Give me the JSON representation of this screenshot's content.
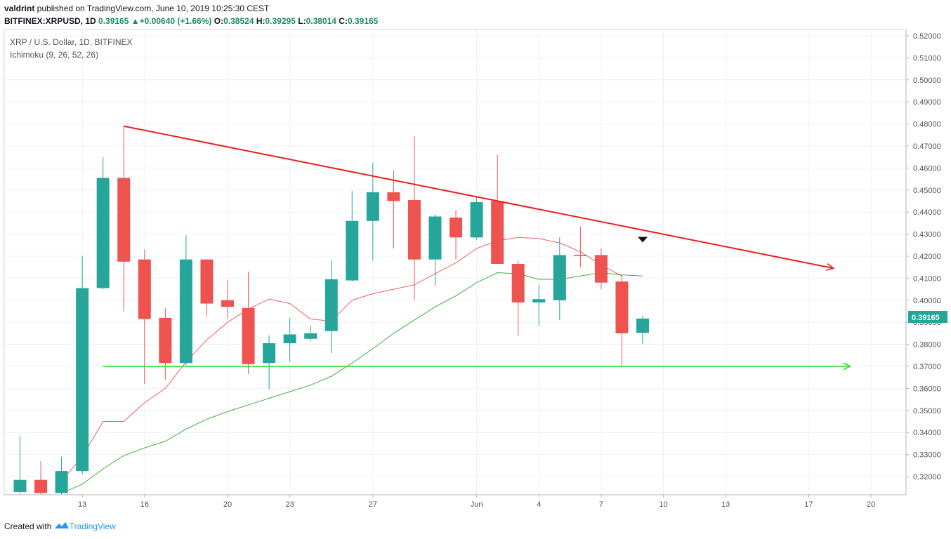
{
  "header": {
    "user": "valdrint",
    "published": " published on TradingView.com, June 10, 2019 10:25:30 CEST",
    "symbol": "BITFINEX:XRPUSD, 1D",
    "last_price": "0.39165",
    "change": "+0.00640 (+1.66%)",
    "o_label": "O:",
    "o_value": "0.38524",
    "h_label": "H:",
    "h_value": "0.39295",
    "l_label": "L:",
    "l_value": "0.38014",
    "c_label": "C:",
    "c_value": "0.39165"
  },
  "legend": {
    "title": "XRP / U.S. Dollar, 1D, BITFINEX",
    "indicator": "Ichimoku (9, 26, 52, 26)"
  },
  "footer": {
    "created_with": "Created with",
    "brand": "TradingView"
  },
  "colors": {
    "up": "#26a69a",
    "down": "#ef5350",
    "resistance": "#f01f1f",
    "support": "#22dd22",
    "conversion": "#f06060",
    "base": "#40b040",
    "grid": "#eef1f5"
  },
  "chart_data": {
    "type": "candlestick",
    "ylim": [
      0.312,
      0.524
    ],
    "y_ticks": [
      "0.32000",
      "0.33000",
      "0.34000",
      "0.35000",
      "0.36000",
      "0.37000",
      "0.38000",
      "0.39000",
      "0.40000",
      "0.41000",
      "0.42000",
      "0.43000",
      "0.44000",
      "0.45000",
      "0.46000",
      "0.47000",
      "0.48000",
      "0.49000",
      "0.50000",
      "0.51000",
      "0.52000"
    ],
    "x_ticks": [
      {
        "label": "13",
        "day": 13
      },
      {
        "label": "16",
        "day": 16
      },
      {
        "label": "20",
        "day": 20
      },
      {
        "label": "23",
        "day": 23
      },
      {
        "label": "27",
        "day": 27
      },
      {
        "label": "Jun",
        "day": 32
      },
      {
        "label": "4",
        "day": 35
      },
      {
        "label": "7",
        "day": 38
      },
      {
        "label": "10",
        "day": 41
      },
      {
        "label": "13",
        "day": 44
      },
      {
        "label": "17",
        "day": 48
      },
      {
        "label": "20",
        "day": 51
      }
    ],
    "current_price": "0.39165",
    "candles": [
      {
        "day": 10,
        "o": 0.313,
        "h": 0.3385,
        "l": 0.312,
        "c": 0.3185
      },
      {
        "day": 11,
        "o": 0.3185,
        "h": 0.327,
        "l": 0.312,
        "c": 0.3125
      },
      {
        "day": 12,
        "o": 0.3125,
        "h": 0.329,
        "l": 0.312,
        "c": 0.3225
      },
      {
        "day": 13,
        "o": 0.3225,
        "h": 0.42,
        "l": 0.321,
        "c": 0.4055
      },
      {
        "day": 14,
        "o": 0.4055,
        "h": 0.465,
        "l": 0.405,
        "c": 0.4555
      },
      {
        "day": 15,
        "o": 0.4555,
        "h": 0.479,
        "l": 0.395,
        "c": 0.4175
      },
      {
        "day": 16,
        "o": 0.4185,
        "h": 0.423,
        "l": 0.362,
        "c": 0.3915
      },
      {
        "day": 17,
        "o": 0.392,
        "h": 0.3965,
        "l": 0.364,
        "c": 0.3715
      },
      {
        "day": 18,
        "o": 0.3715,
        "h": 0.4295,
        "l": 0.3705,
        "c": 0.4185
      },
      {
        "day": 19,
        "o": 0.4185,
        "h": 0.4185,
        "l": 0.3925,
        "c": 0.3985
      },
      {
        "day": 20,
        "o": 0.4,
        "h": 0.409,
        "l": 0.3915,
        "c": 0.397
      },
      {
        "day": 21,
        "o": 0.3965,
        "h": 0.413,
        "l": 0.3665,
        "c": 0.371
      },
      {
        "day": 22,
        "o": 0.3715,
        "h": 0.384,
        "l": 0.3595,
        "c": 0.3805
      },
      {
        "day": 23,
        "o": 0.3805,
        "h": 0.392,
        "l": 0.372,
        "c": 0.3845
      },
      {
        "day": 24,
        "o": 0.3825,
        "h": 0.3885,
        "l": 0.3815,
        "c": 0.385
      },
      {
        "day": 25,
        "o": 0.386,
        "h": 0.418,
        "l": 0.376,
        "c": 0.4095
      },
      {
        "day": 26,
        "o": 0.409,
        "h": 0.4495,
        "l": 0.4085,
        "c": 0.436
      },
      {
        "day": 27,
        "o": 0.436,
        "h": 0.4625,
        "l": 0.418,
        "c": 0.449
      },
      {
        "day": 28,
        "o": 0.449,
        "h": 0.459,
        "l": 0.4235,
        "c": 0.445
      },
      {
        "day": 29,
        "o": 0.4455,
        "h": 0.4745,
        "l": 0.4,
        "c": 0.4185
      },
      {
        "day": 30,
        "o": 0.4185,
        "h": 0.439,
        "l": 0.4065,
        "c": 0.438
      },
      {
        "day": 31,
        "o": 0.4375,
        "h": 0.441,
        "l": 0.4185,
        "c": 0.4285
      },
      {
        "day": 32,
        "o": 0.4285,
        "h": 0.447,
        "l": 0.4275,
        "c": 0.4445
      },
      {
        "day": 33,
        "o": 0.445,
        "h": 0.466,
        "l": 0.417,
        "c": 0.4165
      },
      {
        "day": 34,
        "o": 0.4165,
        "h": 0.418,
        "l": 0.384,
        "c": 0.399
      },
      {
        "day": 35,
        "o": 0.399,
        "h": 0.407,
        "l": 0.3885,
        "c": 0.4005
      },
      {
        "day": 36,
        "o": 0.4,
        "h": 0.4285,
        "l": 0.391,
        "c": 0.4205
      },
      {
        "day": 37,
        "o": 0.4205,
        "h": 0.4335,
        "l": 0.415,
        "c": 0.42
      },
      {
        "day": 38,
        "o": 0.4205,
        "h": 0.4235,
        "l": 0.405,
        "c": 0.408
      },
      {
        "day": 39,
        "o": 0.4085,
        "h": 0.4115,
        "l": 0.37,
        "c": 0.385
      },
      {
        "day": 40,
        "o": 0.3852,
        "h": 0.393,
        "l": 0.3801,
        "c": 0.3917
      }
    ],
    "conversion_line": [
      {
        "day": 12,
        "v": 0.318
      },
      {
        "day": 13,
        "v": 0.329
      },
      {
        "day": 14,
        "v": 0.345
      },
      {
        "day": 15,
        "v": 0.345
      },
      {
        "day": 16,
        "v": 0.3535
      },
      {
        "day": 17,
        "v": 0.36
      },
      {
        "day": 18,
        "v": 0.372
      },
      {
        "day": 19,
        "v": 0.382
      },
      {
        "day": 20,
        "v": 0.39
      },
      {
        "day": 21,
        "v": 0.396
      },
      {
        "day": 22,
        "v": 0.4005
      },
      {
        "day": 23,
        "v": 0.3985
      },
      {
        "day": 24,
        "v": 0.3915
      },
      {
        "day": 25,
        "v": 0.3905
      },
      {
        "day": 26,
        "v": 0.4
      },
      {
        "day": 27,
        "v": 0.403
      },
      {
        "day": 28,
        "v": 0.405
      },
      {
        "day": 29,
        "v": 0.407
      },
      {
        "day": 30,
        "v": 0.412
      },
      {
        "day": 31,
        "v": 0.417
      },
      {
        "day": 32,
        "v": 0.4235
      },
      {
        "day": 33,
        "v": 0.427
      },
      {
        "day": 34,
        "v": 0.4285
      },
      {
        "day": 35,
        "v": 0.428
      },
      {
        "day": 36,
        "v": 0.426
      },
      {
        "day": 37,
        "v": 0.422
      },
      {
        "day": 38,
        "v": 0.416
      },
      {
        "day": 39,
        "v": 0.411
      }
    ],
    "base_line": [
      {
        "day": 12,
        "v": 0.3125
      },
      {
        "day": 13,
        "v": 0.3165
      },
      {
        "day": 14,
        "v": 0.3235
      },
      {
        "day": 15,
        "v": 0.3295
      },
      {
        "day": 16,
        "v": 0.333
      },
      {
        "day": 17,
        "v": 0.336
      },
      {
        "day": 18,
        "v": 0.3415
      },
      {
        "day": 19,
        "v": 0.346
      },
      {
        "day": 20,
        "v": 0.3495
      },
      {
        "day": 21,
        "v": 0.3525
      },
      {
        "day": 22,
        "v": 0.3555
      },
      {
        "day": 23,
        "v": 0.3585
      },
      {
        "day": 24,
        "v": 0.3615
      },
      {
        "day": 25,
        "v": 0.3655
      },
      {
        "day": 26,
        "v": 0.3715
      },
      {
        "day": 27,
        "v": 0.378
      },
      {
        "day": 28,
        "v": 0.385
      },
      {
        "day": 29,
        "v": 0.391
      },
      {
        "day": 30,
        "v": 0.397
      },
      {
        "day": 31,
        "v": 0.402
      },
      {
        "day": 32,
        "v": 0.408
      },
      {
        "day": 33,
        "v": 0.4125
      },
      {
        "day": 34,
        "v": 0.412
      },
      {
        "day": 35,
        "v": 0.4095
      },
      {
        "day": 36,
        "v": 0.4095
      },
      {
        "day": 37,
        "v": 0.411
      },
      {
        "day": 38,
        "v": 0.4125
      },
      {
        "day": 39,
        "v": 0.4115
      },
      {
        "day": 40,
        "v": 0.411
      }
    ],
    "annotations": [
      {
        "type": "resistance-line",
        "from": {
          "day": 15,
          "v": 0.479
        },
        "to": {
          "day": 49.2,
          "v": 0.4145
        }
      },
      {
        "type": "support-line",
        "from": {
          "day": 14,
          "v": 0.37
        },
        "to": {
          "day": 50,
          "v": 0.37
        }
      },
      {
        "type": "down-arrow-marker",
        "at": {
          "day": 40,
          "v": 0.4275
        }
      }
    ]
  }
}
